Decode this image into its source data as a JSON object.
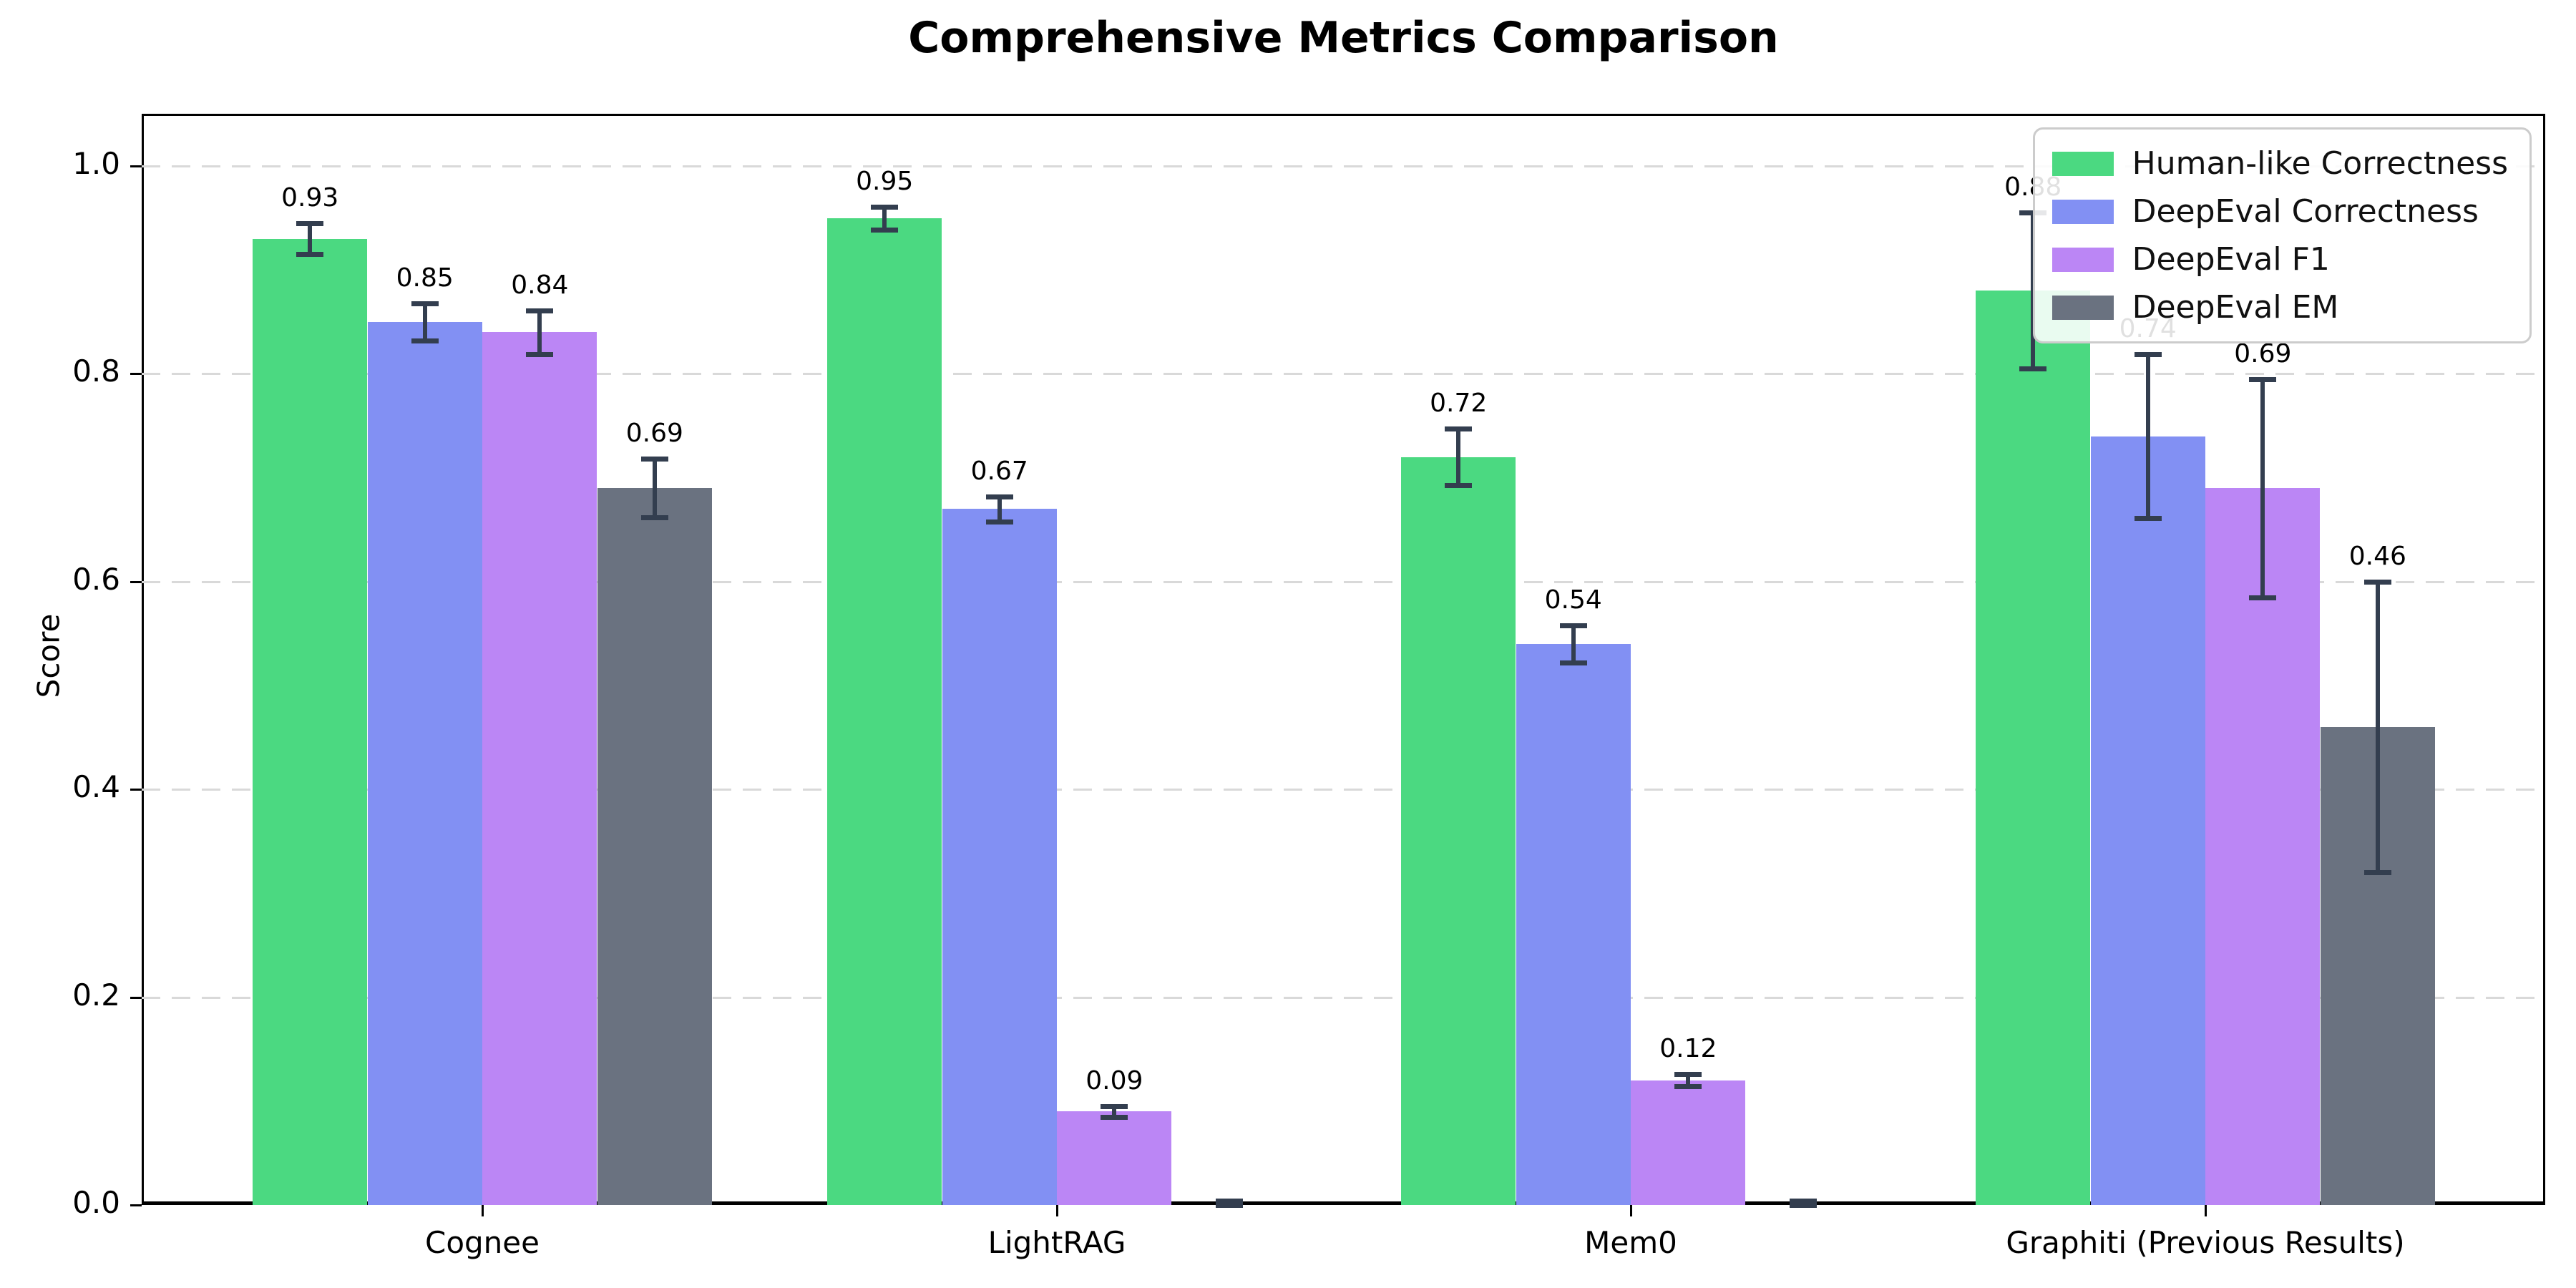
{
  "title": "Comprehensive Metrics Comparison",
  "chart_data": {
    "type": "bar",
    "title": "Comprehensive Metrics Comparison",
    "xlabel": "",
    "ylabel": "Score",
    "ylim": [
      0,
      1.05
    ],
    "yticks": [
      "0.0",
      "0.2",
      "0.4",
      "0.6",
      "0.8",
      "1.0"
    ],
    "grid": "horizontal dashed",
    "legend_position": "upper right",
    "categories": [
      "Cognee",
      "LightRAG",
      "Mem0",
      "Graphiti (Previous Results)"
    ],
    "series": [
      {
        "name": "Human-like Correctness",
        "color": "#4bd981",
        "values": [
          0.93,
          0.95,
          0.72,
          0.88
        ],
        "errors": [
          0.015,
          0.011,
          0.027,
          0.075
        ],
        "labels": [
          "0.93",
          "0.95",
          "0.72",
          "0.88"
        ]
      },
      {
        "name": "DeepEval Correctness",
        "color": "#8290f3",
        "values": [
          0.85,
          0.67,
          0.54,
          0.74
        ],
        "errors": [
          0.018,
          0.012,
          0.018,
          0.079
        ],
        "labels": [
          "0.85",
          "0.67",
          "0.54",
          "0.74"
        ]
      },
      {
        "name": "DeepEval F1",
        "color": "#bb86f5",
        "values": [
          0.84,
          0.09,
          0.12,
          0.69
        ],
        "errors": [
          0.021,
          0.005,
          0.006,
          0.105
        ],
        "labels": [
          "0.84",
          "0.09",
          "0.12",
          "0.69"
        ]
      },
      {
        "name": "DeepEval EM",
        "color": "#6a7280",
        "values": [
          0.69,
          0.0,
          0.0,
          0.46
        ],
        "errors": [
          0.028,
          0.004,
          0.004,
          0.14
        ],
        "labels": [
          "0.69",
          "",
          "",
          "0.46"
        ]
      }
    ],
    "error_bar_color": "#333e4f"
  }
}
